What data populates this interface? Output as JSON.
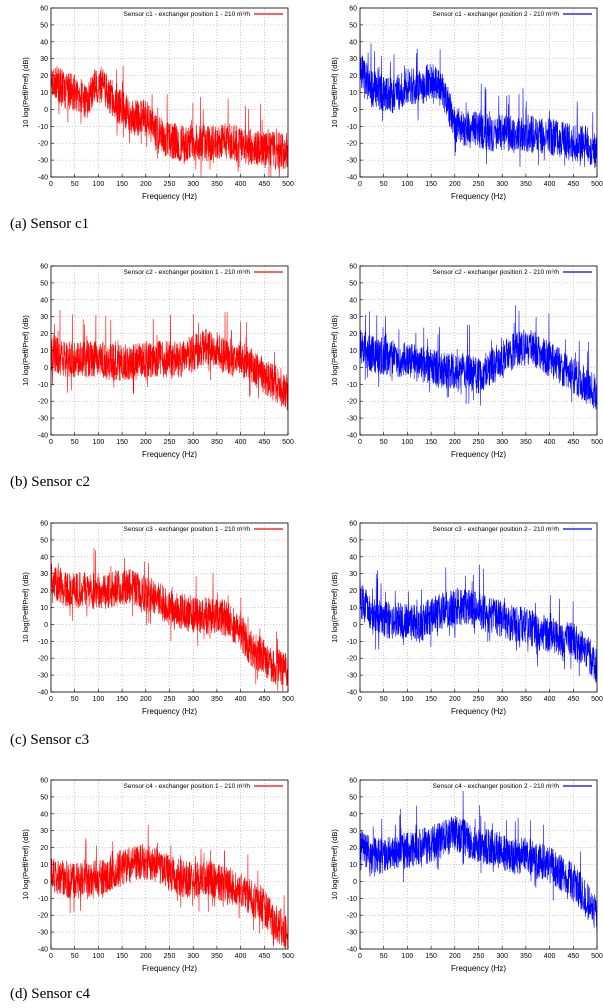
{
  "figure": {
    "captions": [
      "(a) Sensor c1",
      "(b) Sensor c2",
      "(c) Sensor c3",
      "(d) Sensor c4"
    ]
  },
  "colors": {
    "position1": "#ff0000",
    "position2": "#0000ff",
    "grid": "#999999"
  },
  "chart_data": [
    {
      "type": "line",
      "panel": "a-left",
      "title": "Sensor c1 - exchanger position 1 - 210 m³/h",
      "xlabel": "Frequency (Hz)",
      "ylabel": "10 log(Peff/Pref) (dB)",
      "xlim": [
        0,
        500
      ],
      "ylim": [
        -40,
        60
      ],
      "xticks": [
        0,
        50,
        100,
        150,
        200,
        250,
        300,
        350,
        400,
        450,
        500
      ],
      "yticks": [
        -40,
        -30,
        -20,
        -10,
        0,
        10,
        20,
        30,
        40,
        50,
        60
      ],
      "grid": true,
      "legend": "top-right",
      "series": [
        {
          "name": "Sensor c1 - exchanger position 1 - 210 m³/h",
          "color": "#ff0000",
          "x": [
            0,
            25,
            50,
            75,
            100,
            125,
            150,
            175,
            200,
            225,
            250,
            275,
            300,
            325,
            350,
            375,
            400,
            425,
            450,
            475,
            500
          ],
          "y": [
            20,
            12,
            10,
            5,
            15,
            8,
            0,
            -5,
            -5,
            -15,
            -18,
            -20,
            -20,
            -20,
            -20,
            -18,
            -22,
            -22,
            -24,
            -24,
            -25
          ]
        }
      ]
    },
    {
      "type": "line",
      "panel": "a-right",
      "title": "Sensor c1 - exchanger position 2 - 210 m³/h",
      "xlabel": "Frequency (Hz)",
      "ylabel": "10 log(Peff/Pref) (dB)",
      "xlim": [
        0,
        500
      ],
      "ylim": [
        -40,
        60
      ],
      "xticks": [
        0,
        50,
        100,
        150,
        200,
        250,
        300,
        350,
        400,
        450,
        500
      ],
      "yticks": [
        -40,
        -30,
        -20,
        -10,
        0,
        10,
        20,
        30,
        40,
        50,
        60
      ],
      "grid": true,
      "legend": "top-right",
      "series": [
        {
          "name": "Sensor c1 - exchanger position 2 - 210 m³/h",
          "color": "#0000ff",
          "x": [
            0,
            25,
            50,
            75,
            100,
            125,
            150,
            175,
            200,
            225,
            250,
            275,
            300,
            325,
            350,
            375,
            400,
            425,
            450,
            475,
            500
          ],
          "y": [
            25,
            12,
            10,
            8,
            15,
            12,
            18,
            10,
            -8,
            -12,
            -12,
            -14,
            -14,
            -15,
            -14,
            -15,
            -16,
            -18,
            -20,
            -20,
            -25
          ]
        }
      ]
    },
    {
      "type": "line",
      "panel": "b-left",
      "title": "Sensor c2 - exchanger position 1 - 210 m³/h",
      "xlabel": "Frequency (Hz)",
      "ylabel": "10 log(Peff/Pref) (dB)",
      "xlim": [
        0,
        500
      ],
      "ylim": [
        -40,
        60
      ],
      "xticks": [
        0,
        50,
        100,
        150,
        200,
        250,
        300,
        350,
        400,
        450,
        500
      ],
      "yticks": [
        -40,
        -30,
        -20,
        -10,
        0,
        10,
        20,
        30,
        40,
        50,
        60
      ],
      "grid": true,
      "legend": "top-right",
      "series": [
        {
          "name": "Sensor c2 - exchanger position 1 - 210 m³/h",
          "color": "#ff0000",
          "x": [
            0,
            25,
            50,
            75,
            100,
            125,
            150,
            175,
            200,
            225,
            250,
            275,
            300,
            325,
            350,
            375,
            400,
            425,
            450,
            475,
            500
          ],
          "y": [
            10,
            5,
            5,
            5,
            5,
            3,
            3,
            3,
            5,
            5,
            5,
            5,
            8,
            12,
            10,
            5,
            5,
            0,
            -5,
            -10,
            -15
          ]
        }
      ]
    },
    {
      "type": "line",
      "panel": "b-right",
      "title": "Sensor c2 - exchanger position 2 - 210 m³/h",
      "xlabel": "Frequency (Hz)",
      "ylabel": "10 log(Peff/Pref) (dB)",
      "xlim": [
        0,
        500
      ],
      "ylim": [
        -40,
        60
      ],
      "xticks": [
        0,
        50,
        100,
        150,
        200,
        250,
        300,
        350,
        400,
        450,
        500
      ],
      "yticks": [
        -40,
        -30,
        -20,
        -10,
        0,
        10,
        20,
        30,
        40,
        50,
        60
      ],
      "grid": true,
      "legend": "top-right",
      "series": [
        {
          "name": "Sensor c2 - exchanger position 2 - 210 m³/h",
          "color": "#0000ff",
          "x": [
            0,
            25,
            50,
            75,
            100,
            125,
            150,
            175,
            200,
            225,
            250,
            275,
            300,
            325,
            350,
            375,
            400,
            425,
            450,
            475,
            500
          ],
          "y": [
            12,
            8,
            5,
            5,
            5,
            2,
            0,
            -2,
            -2,
            -2,
            -5,
            0,
            5,
            10,
            12,
            10,
            5,
            0,
            -5,
            -10,
            -15
          ]
        }
      ]
    },
    {
      "type": "line",
      "panel": "c-left",
      "title": "Sensor c3 - exchanger position 1 - 210 m³/h",
      "xlabel": "Frequency (Hz)",
      "ylabel": "10 log(Peff/Pref) (dB)",
      "xlim": [
        0,
        500
      ],
      "ylim": [
        -40,
        60
      ],
      "xticks": [
        0,
        50,
        100,
        150,
        200,
        250,
        300,
        350,
        400,
        450,
        500
      ],
      "yticks": [
        -40,
        -30,
        -20,
        -10,
        0,
        10,
        20,
        30,
        40,
        50,
        60
      ],
      "grid": true,
      "legend": "top-right",
      "series": [
        {
          "name": "Sensor c3 - exchanger position 1 - 210 m³/h",
          "color": "#ff0000",
          "x": [
            0,
            25,
            50,
            75,
            100,
            125,
            150,
            175,
            200,
            225,
            250,
            275,
            300,
            325,
            350,
            375,
            400,
            425,
            450,
            475,
            500
          ],
          "y": [
            28,
            22,
            20,
            20,
            20,
            20,
            22,
            22,
            18,
            15,
            10,
            8,
            5,
            5,
            5,
            3,
            -5,
            -15,
            -20,
            -25,
            -28
          ]
        }
      ]
    },
    {
      "type": "line",
      "panel": "c-right",
      "title": "Sensor c3 - exchanger position 2 - 210 m³/h",
      "xlabel": "Frequency (Hz)",
      "ylabel": "10 log(Peff/Pref) (dB)",
      "xlim": [
        0,
        500
      ],
      "ylim": [
        -40,
        60
      ],
      "xticks": [
        0,
        50,
        100,
        150,
        200,
        250,
        300,
        350,
        400,
        450,
        500
      ],
      "yticks": [
        -40,
        -30,
        -20,
        -10,
        0,
        10,
        20,
        30,
        40,
        50,
        60
      ],
      "grid": true,
      "legend": "top-right",
      "series": [
        {
          "name": "Sensor c3 - exchanger position 2 - 210 m³/h",
          "color": "#0000ff",
          "x": [
            0,
            25,
            50,
            75,
            100,
            125,
            150,
            175,
            200,
            225,
            250,
            275,
            300,
            325,
            350,
            375,
            400,
            425,
            450,
            475,
            500
          ],
          "y": [
            15,
            5,
            3,
            2,
            2,
            0,
            5,
            8,
            10,
            10,
            8,
            5,
            3,
            0,
            0,
            -5,
            -5,
            -8,
            -10,
            -15,
            -25
          ]
        }
      ]
    },
    {
      "type": "line",
      "panel": "d-left",
      "title": "Sensor c4 - exchanger position 1 - 210 m³/h",
      "xlabel": "Frequency (Hz)",
      "ylabel": "10 log(Peff/Pref) (dB)",
      "xlim": [
        0,
        500
      ],
      "ylim": [
        -40,
        60
      ],
      "xticks": [
        0,
        50,
        100,
        150,
        200,
        250,
        300,
        350,
        400,
        450,
        500
      ],
      "yticks": [
        -40,
        -30,
        -20,
        -10,
        0,
        10,
        20,
        30,
        40,
        50,
        60
      ],
      "grid": true,
      "legend": "top-right",
      "series": [
        {
          "name": "Sensor c4 - exchanger position 1 - 210 m³/h",
          "color": "#ff0000",
          "x": [
            0,
            25,
            50,
            75,
            100,
            125,
            150,
            175,
            200,
            225,
            250,
            275,
            300,
            325,
            350,
            375,
            400,
            425,
            450,
            475,
            500
          ],
          "y": [
            5,
            2,
            0,
            0,
            2,
            5,
            8,
            10,
            12,
            10,
            5,
            2,
            0,
            2,
            0,
            -2,
            -5,
            -10,
            -15,
            -25,
            -30
          ]
        }
      ]
    },
    {
      "type": "line",
      "panel": "d-right",
      "title": "Sensor c4 - exchanger position 2 - 210 m³/h",
      "xlabel": "Frequency (Hz)",
      "ylabel": "10 log(Peff/Pref) (dB)",
      "xlim": [
        0,
        500
      ],
      "ylim": [
        -40,
        60
      ],
      "xticks": [
        0,
        50,
        100,
        150,
        200,
        250,
        300,
        350,
        400,
        450,
        500
      ],
      "yticks": [
        -40,
        -30,
        -20,
        -10,
        0,
        10,
        20,
        30,
        40,
        50,
        60
      ],
      "grid": true,
      "legend": "top-right",
      "series": [
        {
          "name": "Sensor c4 - exchanger position 2 - 210 m³/h",
          "color": "#0000ff",
          "x": [
            0,
            25,
            50,
            75,
            100,
            125,
            150,
            175,
            200,
            225,
            250,
            275,
            300,
            325,
            350,
            375,
            400,
            425,
            450,
            475,
            500
          ],
          "y": [
            20,
            15,
            15,
            18,
            18,
            20,
            22,
            25,
            28,
            25,
            22,
            20,
            18,
            15,
            15,
            12,
            10,
            5,
            0,
            -10,
            -20
          ]
        }
      ]
    }
  ]
}
